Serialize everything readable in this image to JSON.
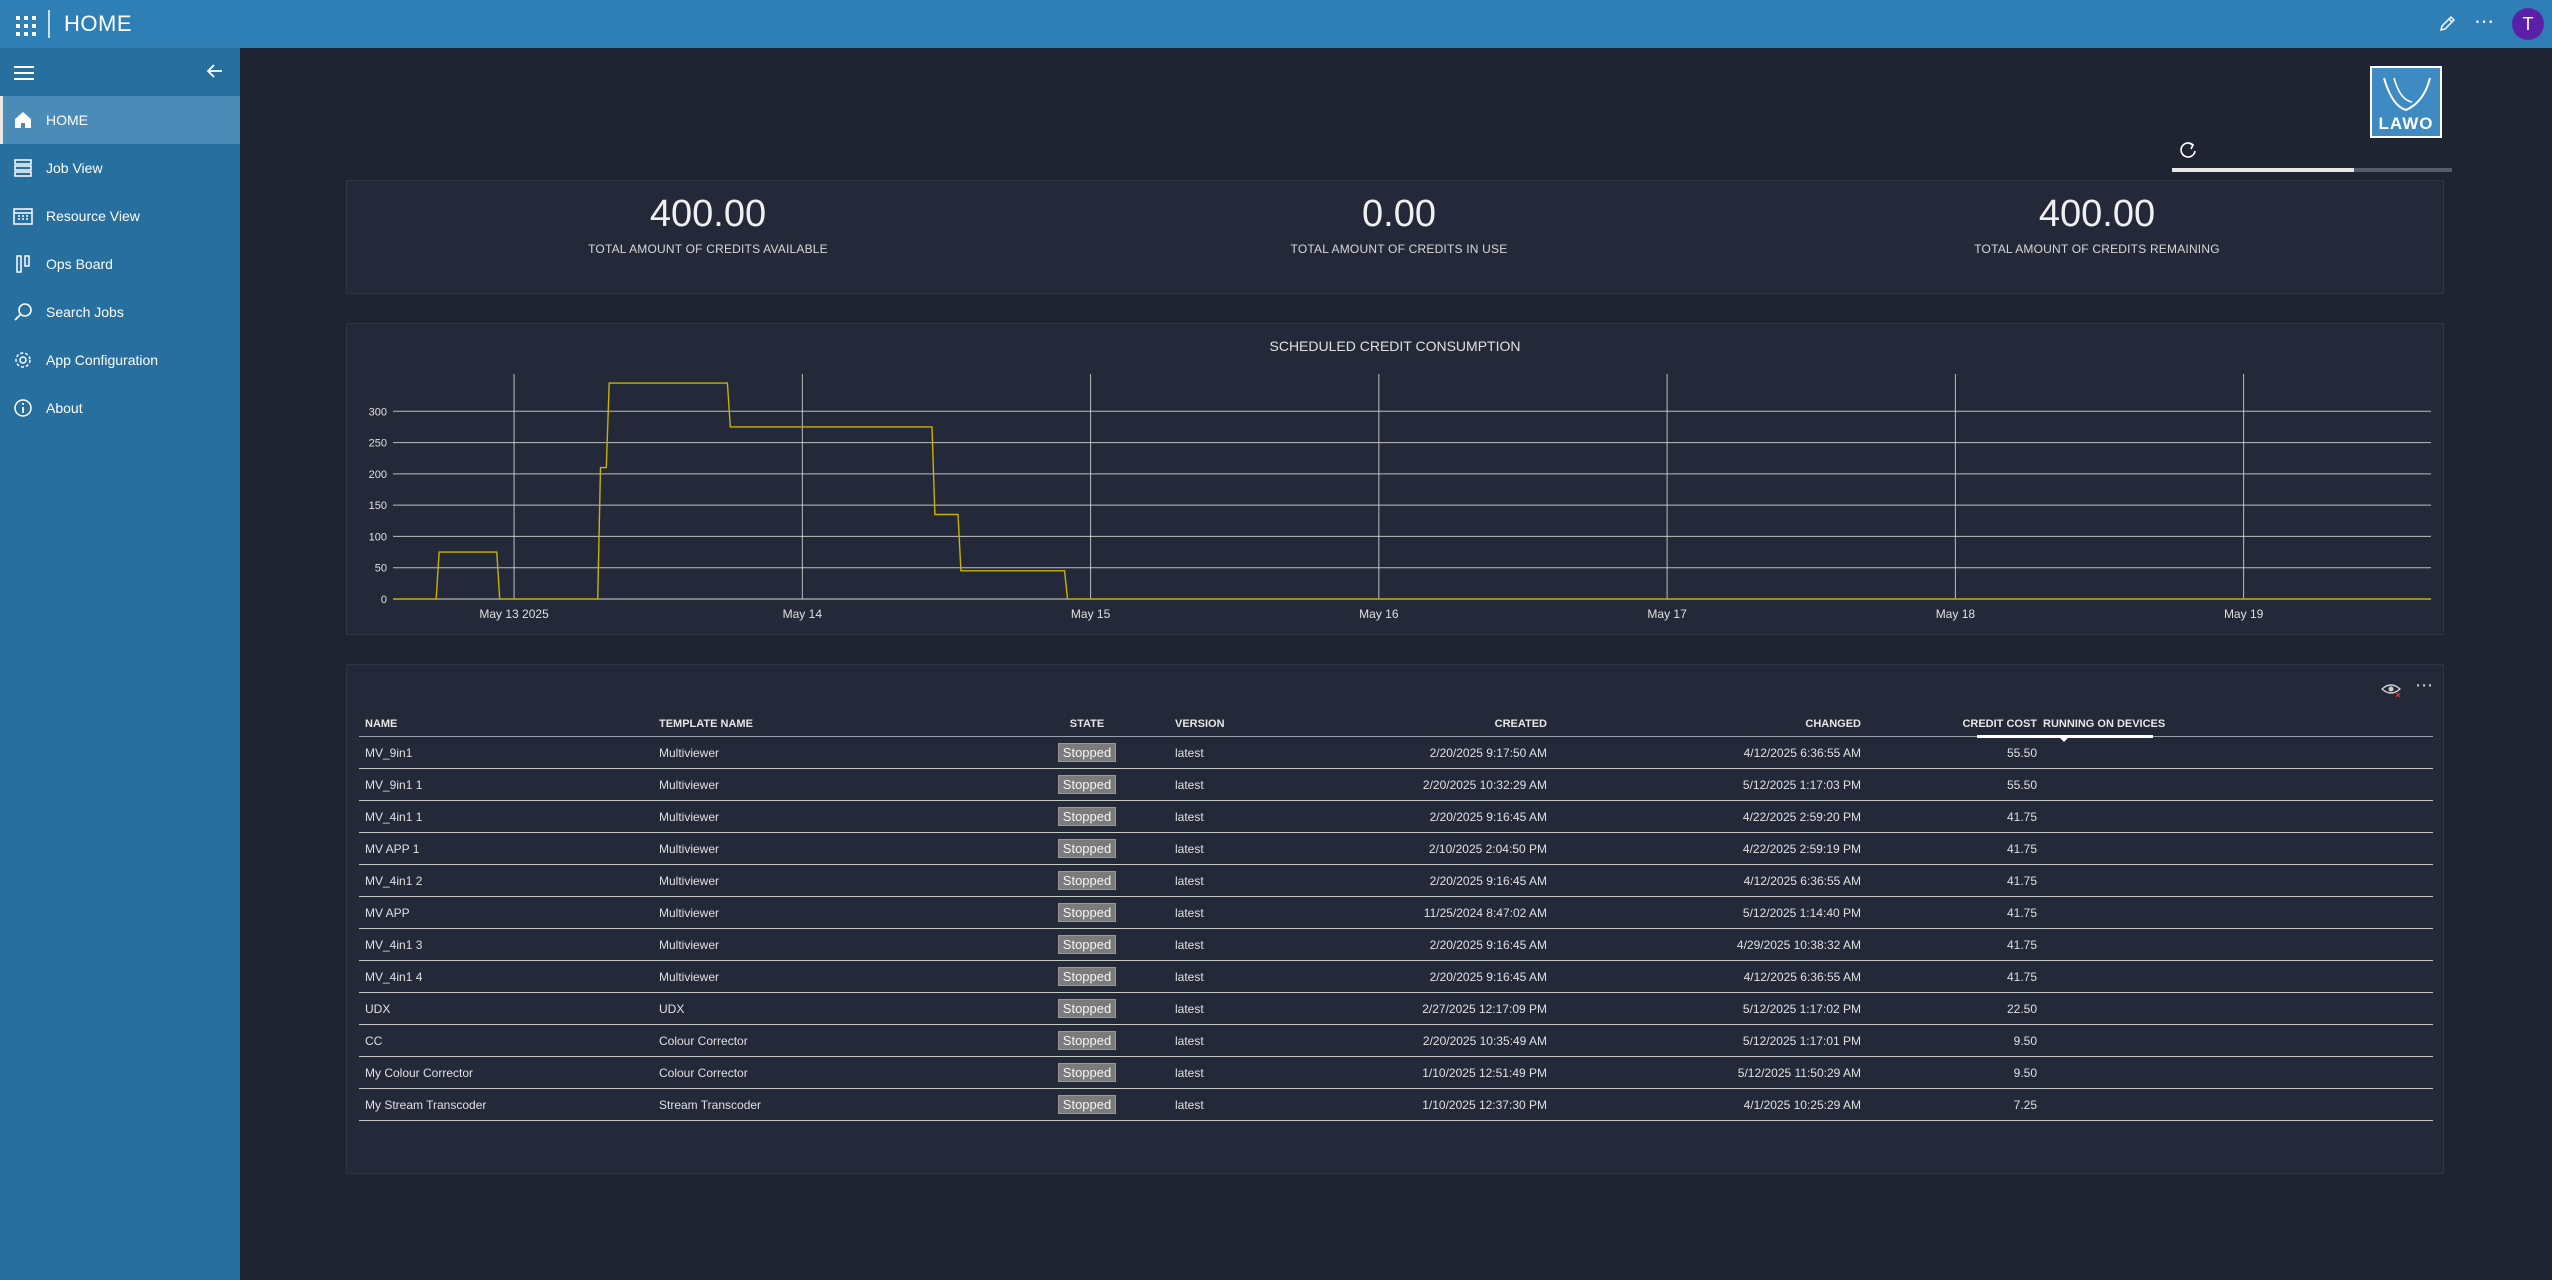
{
  "app": {
    "title": "HOME",
    "avatar_initial": "T"
  },
  "sidebar": {
    "items": [
      {
        "label": "HOME",
        "icon": "home-icon"
      },
      {
        "label": "Job View",
        "icon": "job-view-icon"
      },
      {
        "label": "Resource View",
        "icon": "calendar-icon"
      },
      {
        "label": "Ops Board",
        "icon": "ops-board-icon"
      },
      {
        "label": "Search Jobs",
        "icon": "search-icon"
      },
      {
        "label": "App Configuration",
        "icon": "gear-icon"
      },
      {
        "label": "About",
        "icon": "info-icon"
      }
    ]
  },
  "logo": {
    "text": "LAWO"
  },
  "loading": {
    "progress_fraction": 0.65
  },
  "credits": {
    "available": {
      "value": "400.00",
      "label": "TOTAL AMOUNT OF CREDITS AVAILABLE"
    },
    "in_use": {
      "value": "0.00",
      "label": "TOTAL AMOUNT OF CREDITS IN USE"
    },
    "remaining": {
      "value": "400.00",
      "label": "TOTAL AMOUNT OF CREDITS REMAINING"
    }
  },
  "chart_data": {
    "type": "line",
    "title": "SCHEDULED CREDIT CONSUMPTION",
    "xlabel": "",
    "ylabel": "",
    "ylim": [
      0,
      350
    ],
    "xlim_days": [
      12.58,
      19.65
    ],
    "y_ticks": [
      0,
      50,
      100,
      150,
      200,
      250,
      300
    ],
    "x_ticks": [
      {
        "day": 13,
        "label": "May 13 2025"
      },
      {
        "day": 14,
        "label": "May 14"
      },
      {
        "day": 15,
        "label": "May 15"
      },
      {
        "day": 16,
        "label": "May 16"
      },
      {
        "day": 17,
        "label": "May 17"
      },
      {
        "day": 18,
        "label": "May 18"
      },
      {
        "day": 19,
        "label": "May 19"
      }
    ],
    "grid": true,
    "series": [
      {
        "color": "#c9b200",
        "points": [
          [
            12.58,
            0
          ],
          [
            12.73,
            0
          ],
          [
            12.74,
            75
          ],
          [
            12.94,
            75
          ],
          [
            12.95,
            0
          ],
          [
            13.29,
            0
          ],
          [
            13.3,
            210
          ],
          [
            13.32,
            210
          ],
          [
            13.33,
            345
          ],
          [
            13.74,
            345
          ],
          [
            13.75,
            275
          ],
          [
            14.45,
            275
          ],
          [
            14.46,
            135
          ],
          [
            14.54,
            135
          ],
          [
            14.55,
            45
          ],
          [
            14.91,
            45
          ],
          [
            14.92,
            0
          ],
          [
            19.65,
            0
          ]
        ]
      }
    ]
  },
  "table": {
    "headers": {
      "name": "NAME",
      "template": "TEMPLATE NAME",
      "state": "STATE",
      "version": "VERSION",
      "created": "CREATED",
      "changed": "CHANGED",
      "cost": "CREDIT COST",
      "running": "RUNNING ON DEVICES"
    },
    "rows": [
      {
        "name": "MV_9in1",
        "template": "Multiviewer",
        "state": "Stopped",
        "version": "latest",
        "created": "2/20/2025 9:17:50 AM",
        "changed": "4/12/2025 6:36:55 AM",
        "cost": "55.50",
        "running": ""
      },
      {
        "name": "MV_9in1 1",
        "template": "Multiviewer",
        "state": "Stopped",
        "version": "latest",
        "created": "2/20/2025 10:32:29 AM",
        "changed": "5/12/2025 1:17:03 PM",
        "cost": "55.50",
        "running": ""
      },
      {
        "name": "MV_4in1 1",
        "template": "Multiviewer",
        "state": "Stopped",
        "version": "latest",
        "created": "2/20/2025 9:16:45 AM",
        "changed": "4/22/2025 2:59:20 PM",
        "cost": "41.75",
        "running": ""
      },
      {
        "name": "MV APP 1",
        "template": "Multiviewer",
        "state": "Stopped",
        "version": "latest",
        "created": "2/10/2025 2:04:50 PM",
        "changed": "4/22/2025 2:59:19 PM",
        "cost": "41.75",
        "running": ""
      },
      {
        "name": "MV_4in1 2",
        "template": "Multiviewer",
        "state": "Stopped",
        "version": "latest",
        "created": "2/20/2025 9:16:45 AM",
        "changed": "4/12/2025 6:36:55 AM",
        "cost": "41.75",
        "running": ""
      },
      {
        "name": "MV APP",
        "template": "Multiviewer",
        "state": "Stopped",
        "version": "latest",
        "created": "11/25/2024 8:47:02 AM",
        "changed": "5/12/2025 1:14:40 PM",
        "cost": "41.75",
        "running": ""
      },
      {
        "name": "MV_4in1 3",
        "template": "Multiviewer",
        "state": "Stopped",
        "version": "latest",
        "created": "2/20/2025 9:16:45 AM",
        "changed": "4/29/2025 10:38:32 AM",
        "cost": "41.75",
        "running": ""
      },
      {
        "name": "MV_4in1 4",
        "template": "Multiviewer",
        "state": "Stopped",
        "version": "latest",
        "created": "2/20/2025 9:16:45 AM",
        "changed": "4/12/2025 6:36:55 AM",
        "cost": "41.75",
        "running": ""
      },
      {
        "name": "UDX",
        "template": "UDX",
        "state": "Stopped",
        "version": "latest",
        "created": "2/27/2025 12:17:09 PM",
        "changed": "5/12/2025 1:17:02 PM",
        "cost": "22.50",
        "running": ""
      },
      {
        "name": "CC",
        "template": "Colour Corrector",
        "state": "Stopped",
        "version": "latest",
        "created": "2/20/2025 10:35:49 AM",
        "changed": "5/12/2025 1:17:01 PM",
        "cost": "9.50",
        "running": ""
      },
      {
        "name": "My Colour Corrector",
        "template": "Colour Corrector",
        "state": "Stopped",
        "version": "latest",
        "created": "1/10/2025 12:51:49 PM",
        "changed": "5/12/2025 11:50:29 AM",
        "cost": "9.50",
        "running": ""
      },
      {
        "name": "My Stream Transcoder",
        "template": "Stream Transcoder",
        "state": "Stopped",
        "version": "latest",
        "created": "1/10/2025 12:37:30 PM",
        "changed": "4/1/2025 10:25:29 AM",
        "cost": "7.25",
        "running": ""
      }
    ]
  }
}
